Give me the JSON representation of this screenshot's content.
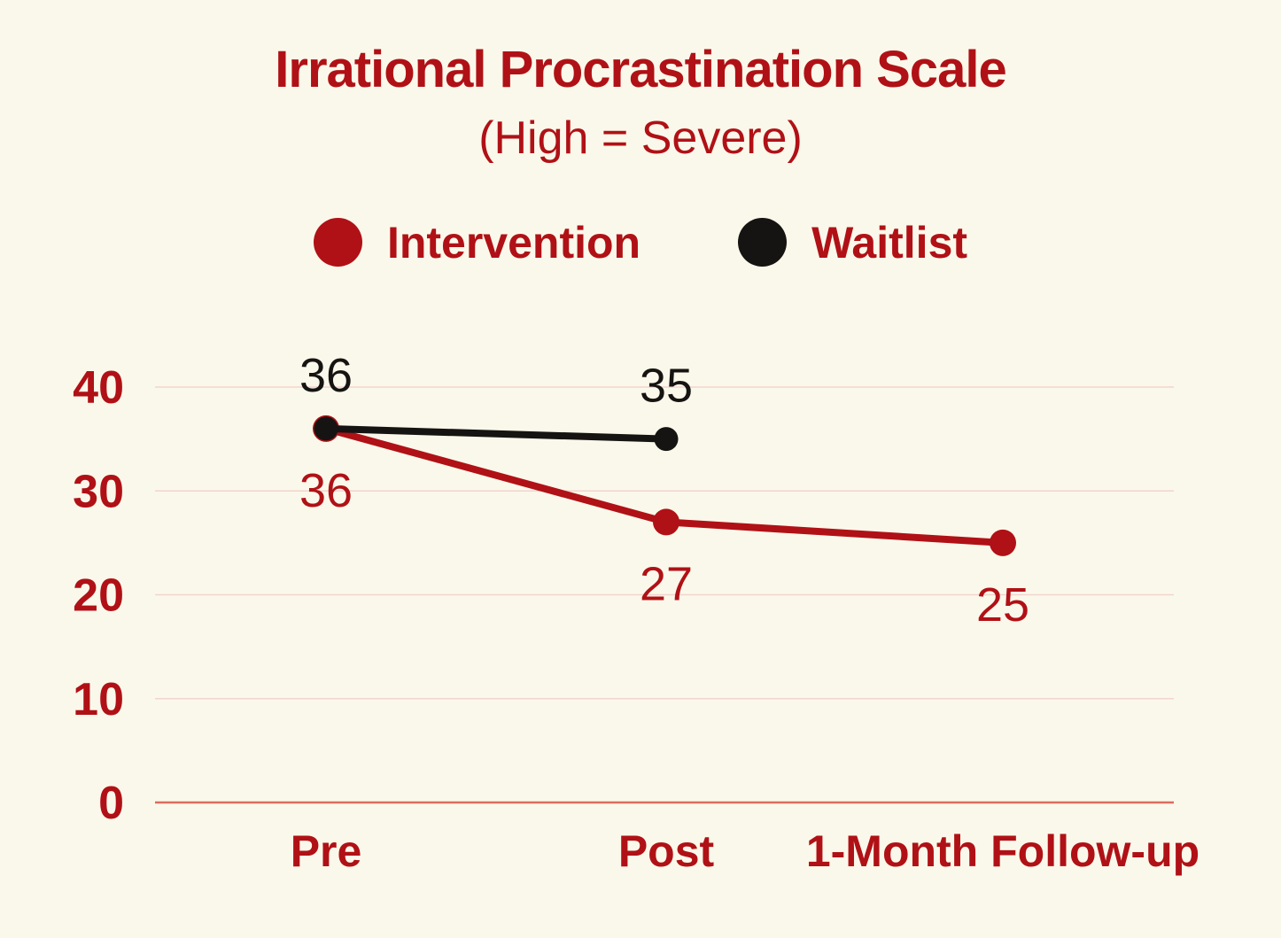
{
  "chart_data": {
    "type": "line",
    "title": "Irrational Procrastination Scale",
    "subtitle": "(High = Severe)",
    "categories": [
      "Pre",
      "Post",
      "1-Month Follow-up"
    ],
    "series": [
      {
        "name": "Intervention",
        "color": "#B01116",
        "values": [
          36,
          27,
          25
        ],
        "value_labels": [
          "36",
          "27",
          "25"
        ],
        "value_label_position": "below"
      },
      {
        "name": "Waitlist",
        "color": "#161412",
        "values": [
          36,
          35,
          null
        ],
        "value_labels": [
          "36",
          "35",
          null
        ],
        "value_label_position": "above"
      }
    ],
    "ylim": [
      0,
      40
    ],
    "yticks": [
      0,
      10,
      20,
      30,
      40
    ],
    "grid": true,
    "grid_orientation": "horizontal",
    "legend_position": "top-center",
    "colors": {
      "background": "#FAF8EA",
      "text": "#B01116",
      "gridline": "#F2D4CE",
      "zero_line": "#D96C60"
    }
  }
}
